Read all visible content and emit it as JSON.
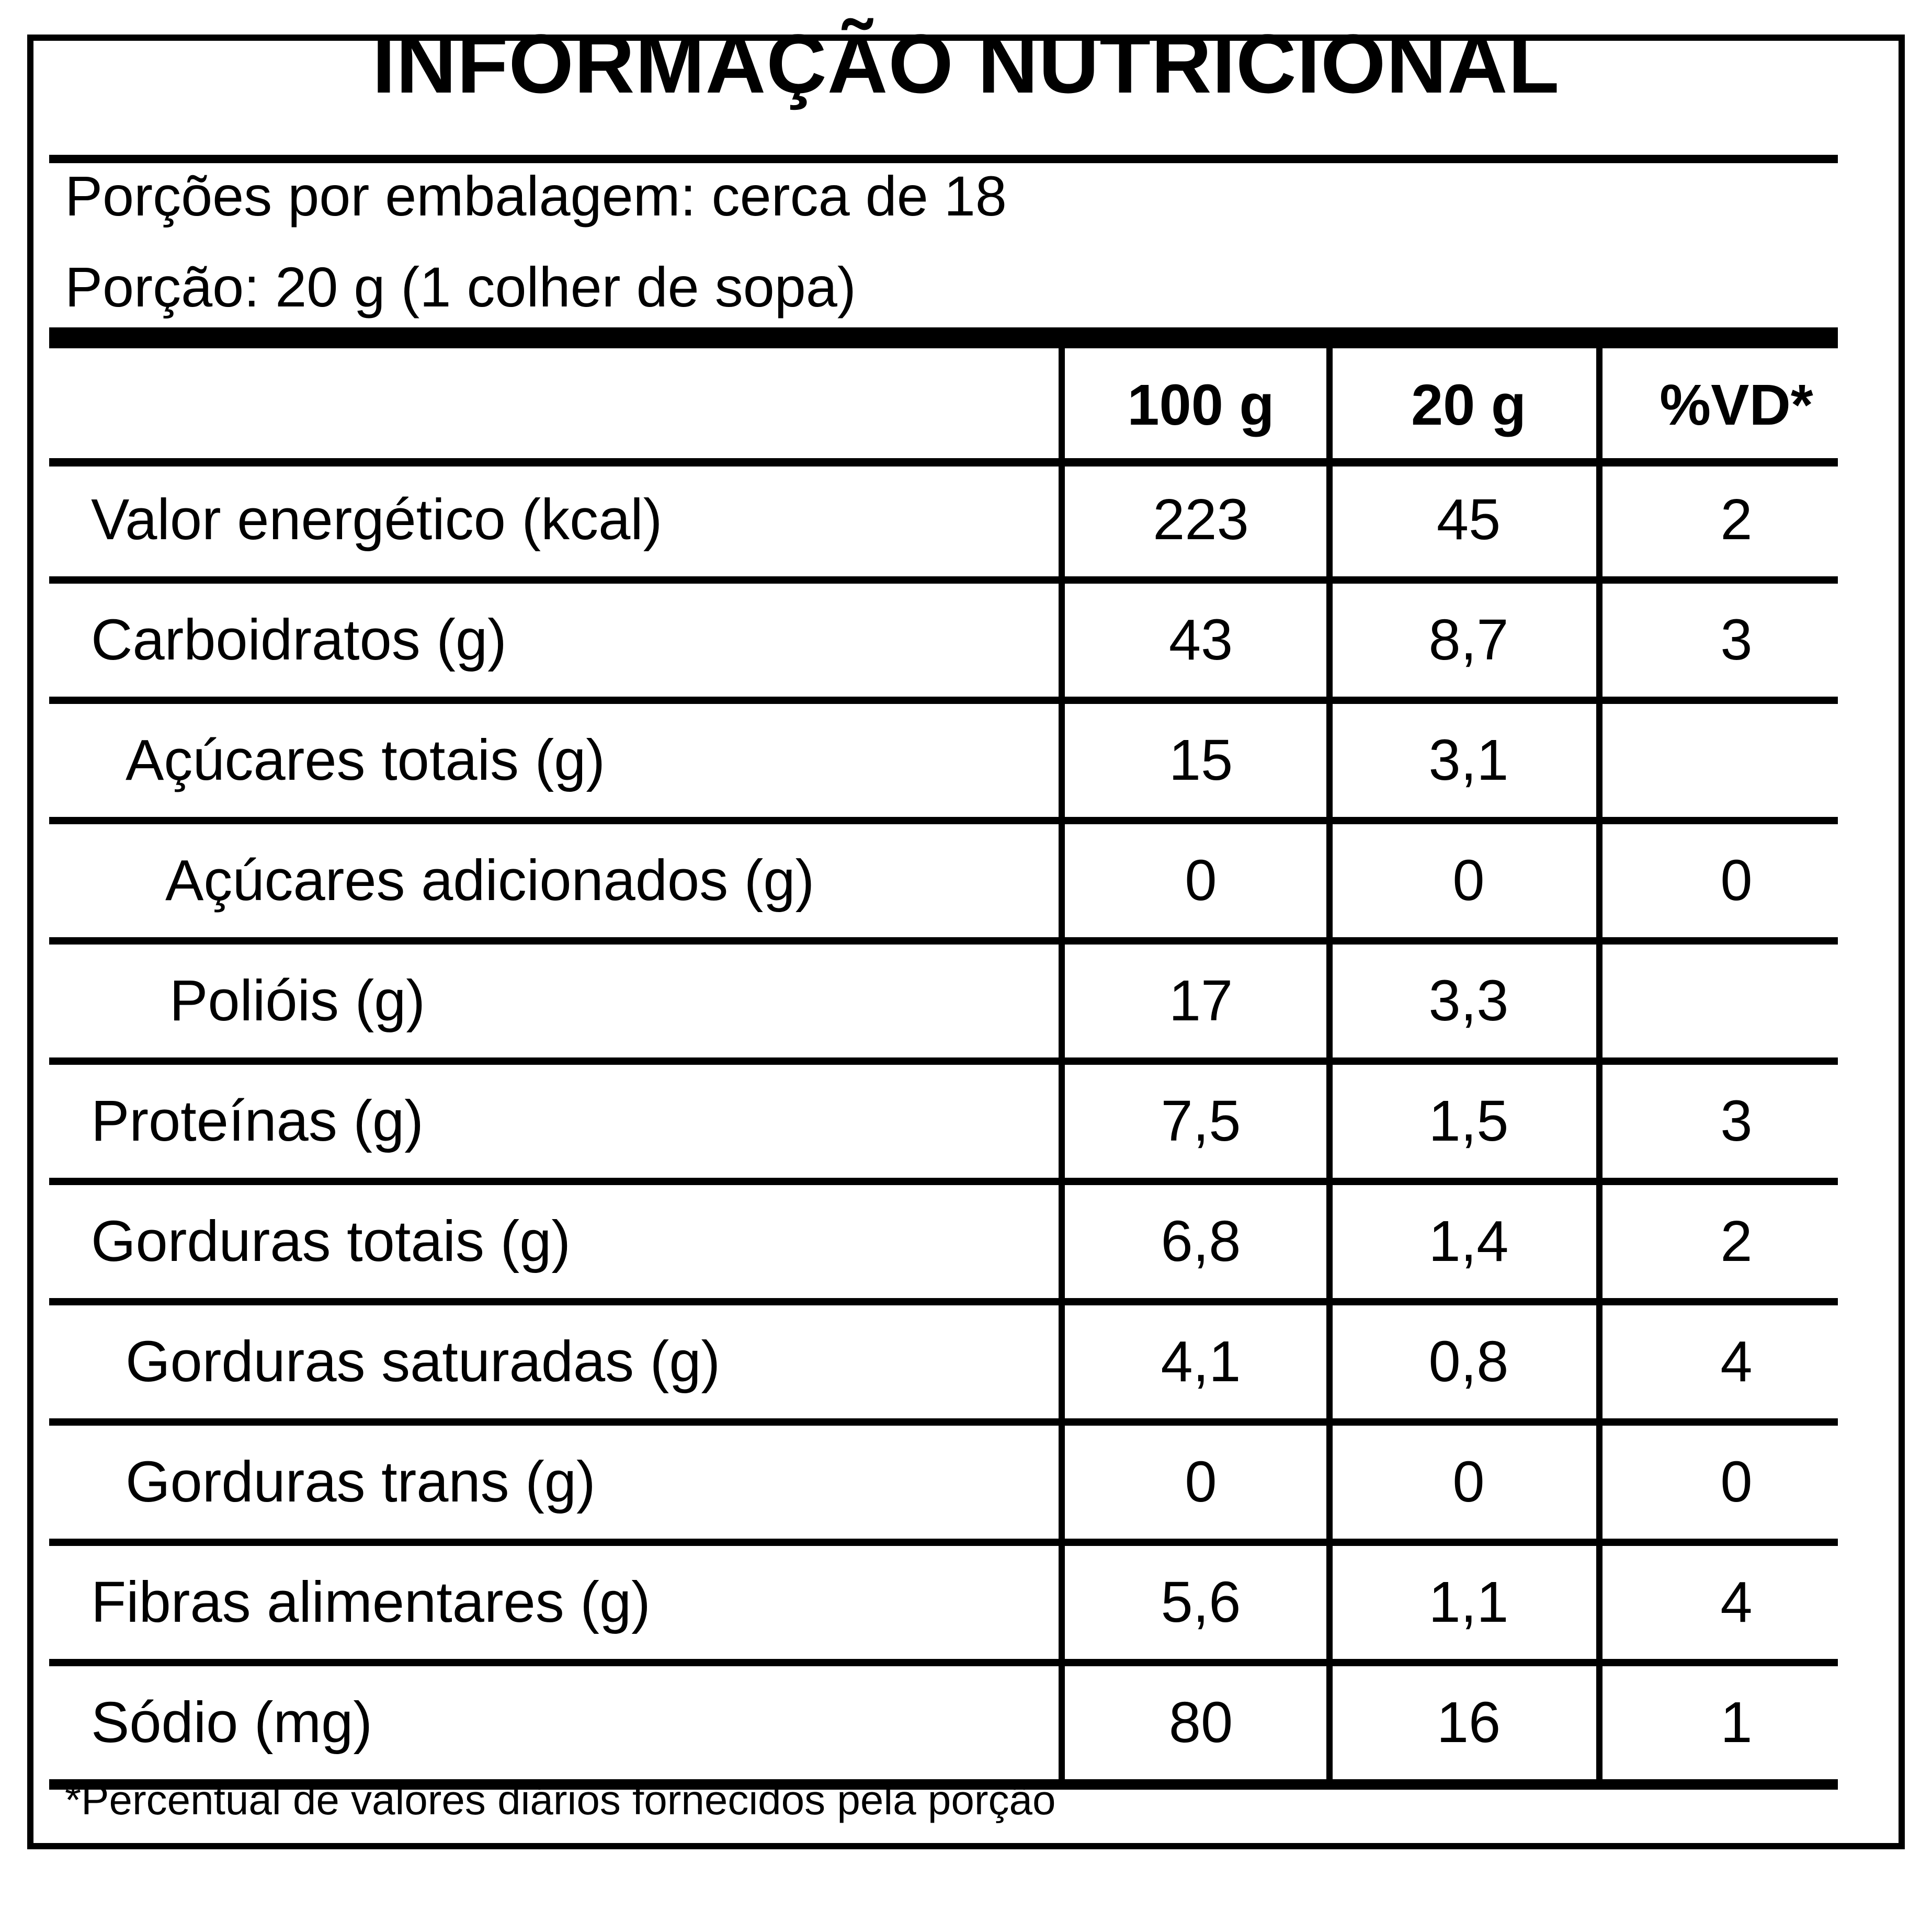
{
  "title": "INFORMAÇÃO NUTRICIONAL",
  "servings_per_package": "Porções por embalagem: cerca de 18",
  "serving_size": "Porção: 20 g (1 colher de sopa)",
  "columns": [
    "100 g",
    "20 g",
    "%VD*"
  ],
  "rows": [
    {
      "label": "Valor energético (kcal)",
      "per_100g": "223",
      "per_portion": "45",
      "dv": "2"
    },
    {
      "label": "Carboidratos (g)",
      "per_100g": "43",
      "per_portion": "8,7",
      "dv": "3"
    },
    {
      "label": "Açúcares totais (g)",
      "per_100g": "15",
      "per_portion": "3,1",
      "dv": ""
    },
    {
      "label": "Açúcares adicionados (g)",
      "per_100g": "0",
      "per_portion": "0",
      "dv": "0"
    },
    {
      "label": "Polióis (g)",
      "per_100g": "17",
      "per_portion": "3,3",
      "dv": ""
    },
    {
      "label": "Proteínas (g)",
      "per_100g": "7,5",
      "per_portion": "1,5",
      "dv": "3"
    },
    {
      "label": "Gorduras totais (g)",
      "per_100g": "6,8",
      "per_portion": "1,4",
      "dv": "2"
    },
    {
      "label": "Gorduras saturadas (g)",
      "per_100g": "4,1",
      "per_portion": "0,8",
      "dv": "4"
    },
    {
      "label": "Gorduras trans (g)",
      "per_100g": "0",
      "per_portion": "0",
      "dv": "0"
    },
    {
      "label": "Fibras alimentares (g)",
      "per_100g": "5,6",
      "per_portion": "1,1",
      "dv": "4"
    },
    {
      "label": "Sódio (mg)",
      "per_100g": "80",
      "per_portion": "16",
      "dv": "1"
    }
  ],
  "footnote": "*Percentual de valores diários fornecidos pela porção"
}
